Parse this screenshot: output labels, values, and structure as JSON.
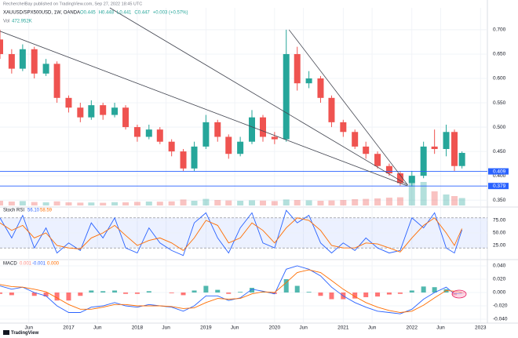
{
  "chart_data": [
    {
      "type": "candlestick",
      "publisher": "RecherchelBay published on TradingView.com, Sep 27, 2022 18:45 UTC",
      "title": "XAUUSD/SPX500USD, 1W, OANDA",
      "ohlc_header": [
        "O0.445",
        "H0.448",
        "L0.441",
        "C0.447",
        "+0.003 (+0.57%)"
      ],
      "volume_label": "Vol",
      "volume_value_label": "472.952K",
      "x": [
        2016.0,
        2016.17,
        2016.33,
        2016.5,
        2016.67,
        2016.83,
        2017.0,
        2017.17,
        2017.33,
        2017.5,
        2017.67,
        2017.83,
        2018.0,
        2018.17,
        2018.33,
        2018.5,
        2018.67,
        2018.83,
        2019.0,
        2019.17,
        2019.33,
        2019.5,
        2019.67,
        2019.83,
        2020.0,
        2020.17,
        2020.33,
        2020.5,
        2020.67,
        2020.83,
        2021.0,
        2021.17,
        2021.33,
        2021.5,
        2021.67,
        2021.83,
        2022.0,
        2022.17,
        2022.33,
        2022.5,
        2022.62,
        2022.73
      ],
      "open": [
        0.68,
        0.65,
        0.62,
        0.66,
        0.61,
        0.63,
        0.56,
        0.54,
        0.52,
        0.545,
        0.525,
        0.54,
        0.5,
        0.48,
        0.495,
        0.47,
        0.45,
        0.415,
        0.46,
        0.51,
        0.48,
        0.445,
        0.47,
        0.52,
        0.48,
        0.475,
        0.65,
        0.59,
        0.6,
        0.56,
        0.51,
        0.49,
        0.46,
        0.445,
        0.42,
        0.405,
        0.385,
        0.4,
        0.46,
        0.455,
        0.49,
        0.42
      ],
      "high": [
        0.7,
        0.66,
        0.67,
        0.665,
        0.64,
        0.635,
        0.565,
        0.55,
        0.555,
        0.55,
        0.55,
        0.545,
        0.505,
        0.505,
        0.5,
        0.475,
        0.455,
        0.47,
        0.525,
        0.515,
        0.485,
        0.48,
        0.535,
        0.525,
        0.49,
        0.7,
        0.665,
        0.615,
        0.605,
        0.565,
        0.515,
        0.495,
        0.47,
        0.45,
        0.425,
        0.41,
        0.41,
        0.47,
        0.495,
        0.505,
        0.495,
        0.45
      ],
      "low": [
        0.64,
        0.61,
        0.615,
        0.6,
        0.605,
        0.55,
        0.53,
        0.51,
        0.515,
        0.515,
        0.52,
        0.495,
        0.47,
        0.475,
        0.465,
        0.44,
        0.41,
        0.41,
        0.455,
        0.47,
        0.435,
        0.44,
        0.465,
        0.47,
        0.465,
        0.47,
        0.575,
        0.58,
        0.55,
        0.5,
        0.48,
        0.455,
        0.435,
        0.415,
        0.4,
        0.38,
        0.378,
        0.395,
        0.445,
        0.44,
        0.41,
        0.415
      ],
      "close": [
        0.65,
        0.62,
        0.66,
        0.61,
        0.63,
        0.56,
        0.54,
        0.52,
        0.545,
        0.525,
        0.54,
        0.5,
        0.48,
        0.495,
        0.47,
        0.45,
        0.415,
        0.46,
        0.51,
        0.48,
        0.445,
        0.47,
        0.52,
        0.48,
        0.475,
        0.65,
        0.59,
        0.6,
        0.56,
        0.51,
        0.49,
        0.46,
        0.445,
        0.42,
        0.405,
        0.385,
        0.4,
        0.46,
        0.455,
        0.49,
        0.42,
        0.447
      ],
      "volume": [
        300,
        250,
        280,
        220,
        200,
        260,
        200,
        180,
        190,
        170,
        210,
        200,
        230,
        250,
        240,
        260,
        380,
        300,
        420,
        350,
        320,
        300,
        330,
        310,
        280,
        380,
        350,
        330,
        300,
        320,
        350,
        400,
        420,
        450,
        500,
        520,
        1800,
        1500,
        900,
        700,
        600,
        472.952
      ],
      "vlim": [
        0,
        2500
      ],
      "up_color": "#26a69a",
      "down_color": "#ef5350",
      "xlim": [
        2016.0,
        2023.1
      ],
      "xticks": [
        {
          "value": 2016.42,
          "label": "Jun"
        },
        {
          "value": 2017,
          "label": "2017"
        },
        {
          "value": 2017.42,
          "label": "Jun"
        },
        {
          "value": 2018,
          "label": "2018"
        },
        {
          "value": 2018.42,
          "label": "Jun"
        },
        {
          "value": 2019,
          "label": "2019"
        },
        {
          "value": 2019.42,
          "label": "Jun"
        },
        {
          "value": 2020,
          "label": "2020"
        },
        {
          "value": 2020.42,
          "label": "Jun"
        },
        {
          "value": 2021,
          "label": "2021"
        },
        {
          "value": 2021.42,
          "label": "Jun"
        },
        {
          "value": 2022,
          "label": "2022"
        },
        {
          "value": 2022.42,
          "label": "Jun"
        },
        {
          "value": 2023,
          "label": "2023"
        }
      ],
      "ylim": [
        0.339,
        0.745
      ],
      "yticks": [
        {
          "value": 0.35,
          "label": "0.350"
        },
        {
          "value": 0.4,
          "label": "0.400"
        },
        {
          "value": 0.45,
          "label": "0.450"
        },
        {
          "value": 0.5,
          "label": "0.500"
        },
        {
          "value": 0.55,
          "label": "0.550"
        },
        {
          "value": 0.6,
          "label": "0.600"
        },
        {
          "value": 0.65,
          "label": "0.650"
        },
        {
          "value": 0.7,
          "label": "0.700"
        }
      ],
      "levels": [
        0.409,
        0.379
      ],
      "level_color": "#2962ff",
      "trendlines": [
        {
          "x": [
            2016.0,
            2021.94
          ],
          "y": [
            0.697,
            0.379
          ]
        },
        {
          "x": [
            2017.6,
            2021.94
          ],
          "y": [
            0.745,
            0.381
          ]
        },
        {
          "x": [
            2020.21,
            2021.94
          ],
          "y": [
            0.7,
            0.381
          ]
        }
      ],
      "branding": "TradingView"
    },
    {
      "type": "line",
      "name": "Stoch RSI",
      "header_values": [
        "56.10",
        "58.59"
      ],
      "series": [
        {
          "color": "#2962ff",
          "values": [
            80,
            40,
            85,
            20,
            60,
            10,
            30,
            15,
            70,
            40,
            80,
            20,
            10,
            60,
            30,
            15,
            5,
            70,
            90,
            40,
            10,
            60,
            90,
            30,
            20,
            95,
            70,
            85,
            30,
            10,
            30,
            15,
            40,
            20,
            10,
            15,
            80,
            60,
            90,
            20,
            10,
            56.1
          ]
        },
        {
          "color": "#ff6d00",
          "values": [
            70,
            55,
            65,
            40,
            50,
            25,
            20,
            18,
            40,
            50,
            65,
            45,
            25,
            35,
            40,
            30,
            15,
            40,
            75,
            65,
            30,
            40,
            70,
            55,
            30,
            60,
            80,
            75,
            55,
            25,
            20,
            20,
            30,
            28,
            20,
            12,
            40,
            65,
            80,
            50,
            25,
            58.59
          ]
        }
      ],
      "ylim": [
        0,
        100
      ],
      "band": [
        20,
        80
      ],
      "yticks": [
        {
          "value": 25,
          "label": "25.00"
        },
        {
          "value": 50,
          "label": "50.00"
        },
        {
          "value": 75,
          "label": "75.00"
        }
      ]
    },
    {
      "type": "combo",
      "name": "MACD",
      "header_values": [
        "0.001",
        "-0.001",
        "0.000"
      ],
      "histogram": {
        "up_color": "#26a69a",
        "down_color": "#ff5252",
        "values": [
          -0.002,
          -0.004,
          0,
          -0.005,
          -0.006,
          -0.012,
          -0.012,
          -0.005,
          0.003,
          0.002,
          0.003,
          -0.002,
          -0.002,
          0.002,
          0,
          -0.001,
          -0.004,
          0.003,
          0.01,
          0.004,
          -0.002,
          0.001,
          0.007,
          0.001,
          -0.002,
          0.02,
          0.01,
          0.001,
          -0.005,
          -0.01,
          -0.01,
          -0.009,
          -0.007,
          -0.006,
          -0.003,
          -0.002,
          0.003,
          0.009,
          0.008,
          0.005,
          -0.004,
          -0.001
        ]
      },
      "series": [
        {
          "color": "#2962ff",
          "values": [
            0.01,
            0.005,
            0.008,
            0.0,
            -0.005,
            -0.02,
            -0.03,
            -0.03,
            -0.022,
            -0.02,
            -0.015,
            -0.02,
            -0.022,
            -0.018,
            -0.02,
            -0.022,
            -0.028,
            -0.02,
            -0.005,
            -0.005,
            -0.012,
            -0.008,
            0.005,
            0.002,
            -0.002,
            0.035,
            0.04,
            0.035,
            0.025,
            0.008,
            -0.005,
            -0.015,
            -0.022,
            -0.028,
            -0.03,
            -0.032,
            -0.025,
            -0.01,
            0.0,
            0.008,
            -0.002,
            -0.001
          ]
        },
        {
          "color": "#ff6d00",
          "values": [
            0.012,
            0.009,
            0.008,
            0.005,
            0.001,
            -0.008,
            -0.018,
            -0.025,
            -0.025,
            -0.022,
            -0.018,
            -0.018,
            -0.02,
            -0.02,
            -0.02,
            -0.021,
            -0.024,
            -0.023,
            -0.015,
            -0.009,
            -0.01,
            -0.009,
            -0.002,
            0.001,
            0.0,
            0.015,
            0.03,
            0.034,
            0.03,
            0.018,
            0.005,
            -0.006,
            -0.015,
            -0.022,
            -0.027,
            -0.03,
            -0.028,
            -0.019,
            -0.008,
            0.003,
            0.002,
            0.0
          ]
        }
      ],
      "ylim": [
        -0.04,
        0.04
      ],
      "yticks": [
        {
          "value": -0.04,
          "label": "-0.040"
        },
        {
          "value": -0.02,
          "label": "-0.020"
        },
        {
          "value": 0,
          "label": "0.000"
        },
        {
          "value": 0.02,
          "label": "0.020"
        },
        {
          "value": 0.04,
          "label": "0.040"
        }
      ]
    }
  ]
}
